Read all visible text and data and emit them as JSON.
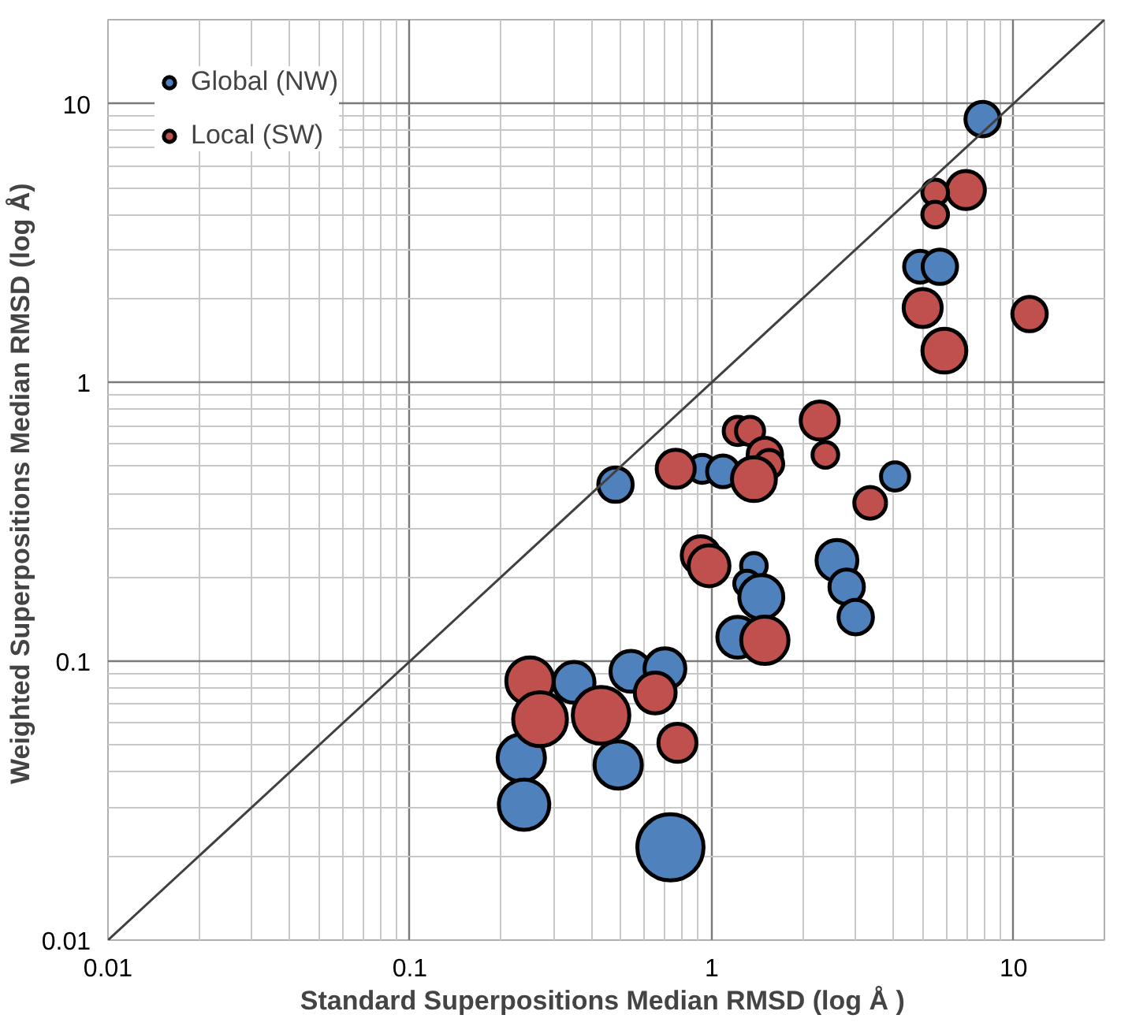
{
  "chart_data": {
    "type": "bubble",
    "xlabel": "Standard Superpositions  Median RMSD (log Å )",
    "ylabel": "Weighted Superpositions  Median RMSD (log Å)",
    "log": "xy",
    "xlim": [
      0.01,
      20
    ],
    "ylim": [
      0.01,
      20
    ],
    "xticks": [
      0.01,
      0.1,
      1,
      10
    ],
    "yticks": [
      0.01,
      0.1,
      1,
      10
    ],
    "grid": true,
    "legend": "top left",
    "series": [
      {
        "name": "Global (NW)",
        "color": "#4f81bd",
        "marker": "circle",
        "x": [
          7.9,
          4.9,
          5.7,
          0.48,
          0.93,
          1.09,
          4.05,
          1.38,
          1.31,
          1.46,
          1.22,
          2.6,
          2.8,
          3.0,
          0.54,
          0.7,
          0.35,
          0.49,
          0.73,
          0.234,
          0.239
        ],
        "values": [
          8.8,
          2.6,
          2.6,
          0.43,
          0.49,
          0.48,
          0.46,
          0.22,
          0.19,
          0.17,
          0.122,
          0.23,
          0.185,
          0.144,
          0.092,
          0.094,
          0.084,
          0.0425,
          0.0215,
          0.045,
          0.0306
        ],
        "sizes": [
          0.27,
          0.23,
          0.27,
          0.27,
          0.18,
          0.23,
          0.18,
          0.15,
          0.15,
          0.44,
          0.38,
          0.38,
          0.27,
          0.27,
          0.38,
          0.38,
          0.38,
          0.51,
          1,
          0.51,
          0.58
        ]
      },
      {
        "name": "Local (SW)",
        "color": "#c0504d",
        "marker": "circle",
        "x": [
          6.95,
          5.5,
          5.5,
          5.0,
          11.3,
          5.9,
          2.28,
          2.38,
          1.22,
          1.34,
          1.5,
          1.55,
          1.38,
          0.76,
          3.35,
          0.92,
          0.98,
          1.5,
          0.65,
          0.43,
          0.77,
          0.25,
          0.27
        ],
        "values": [
          4.9,
          4.8,
          4.0,
          1.85,
          1.76,
          1.3,
          0.73,
          0.55,
          0.67,
          0.67,
          0.55,
          0.51,
          0.45,
          0.49,
          0.37,
          0.24,
          0.22,
          0.119,
          0.077,
          0.064,
          0.051,
          0.085,
          0.062
        ],
        "sizes": [
          0.33,
          0.15,
          0.15,
          0.33,
          0.27,
          0.44,
          0.33,
          0.15,
          0.18,
          0.18,
          0.27,
          0.18,
          0.44,
          0.33,
          0.23,
          0.33,
          0.38,
          0.51,
          0.38,
          0.73,
          0.33,
          0.51,
          0.66
        ]
      },
      {
        "type": "line",
        "marker": "none",
        "color": "#404040",
        "x": [
          0.01,
          20
        ],
        "values": [
          0.01,
          20
        ]
      }
    ]
  }
}
